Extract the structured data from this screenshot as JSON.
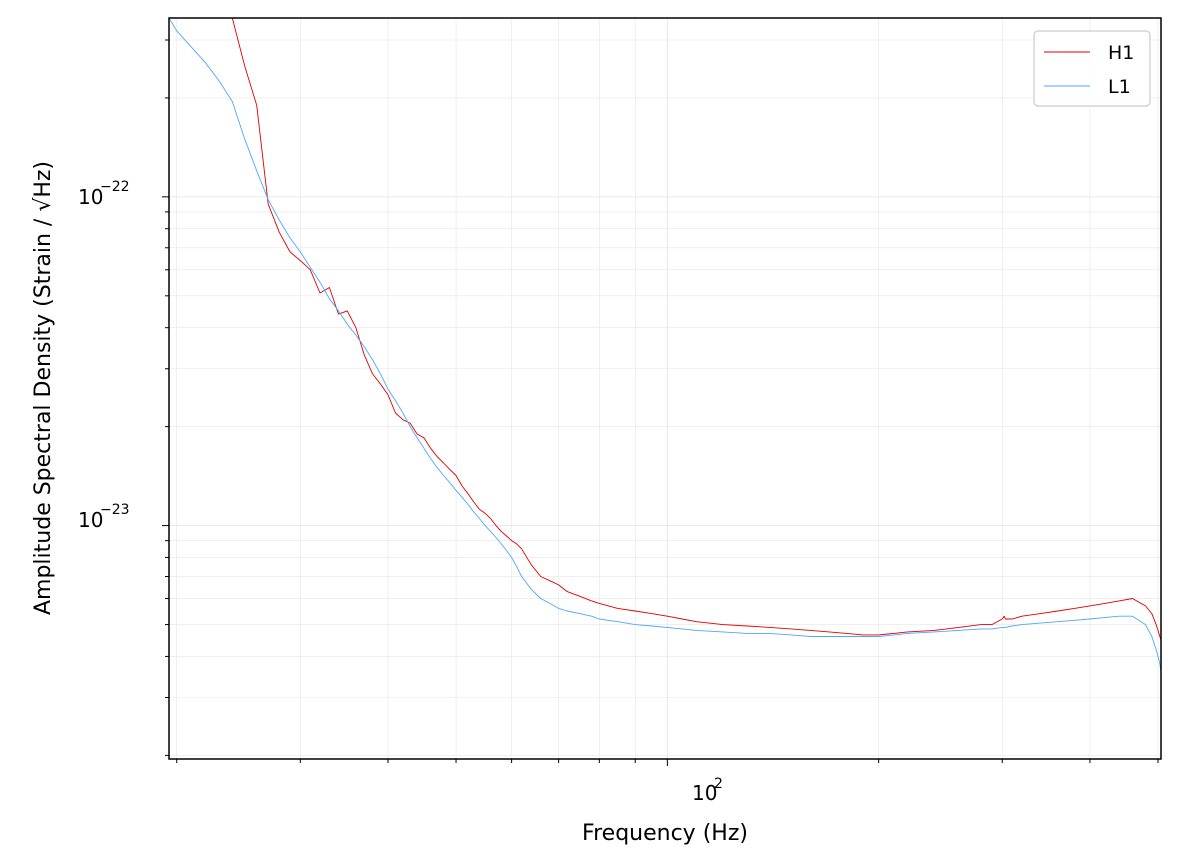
{
  "chart_data": {
    "type": "line",
    "title": "",
    "xlabel": "Frequency (Hz)",
    "ylabel": "Amplitude Spectral Density (Strain / √Hz)",
    "xscale": "log",
    "yscale": "log",
    "xlim": [
      19.5,
      505
    ],
    "ylim": [
      1.95e-24,
      3.5e-22
    ],
    "x_tick_labels": [
      "10^2"
    ],
    "y_tick_labels": [
      "10^-22",
      "10^-23"
    ],
    "grid": true,
    "legend": "upper right",
    "series": [
      {
        "name": "H1",
        "color": "#e00000",
        "x": [
          19.5,
          20,
          21,
          22,
          23,
          24,
          25,
          26,
          27,
          28,
          29,
          30,
          31,
          32,
          33,
          34,
          35,
          36,
          37,
          38,
          39,
          40,
          41,
          42,
          43,
          44,
          45,
          46,
          47,
          48,
          49,
          50,
          51,
          52,
          53,
          54,
          55,
          56,
          57,
          58,
          59,
          60,
          61,
          62,
          64,
          66,
          68,
          70,
          72,
          75,
          78,
          80,
          85,
          90,
          95,
          100,
          105,
          110,
          120,
          130,
          140,
          150,
          160,
          170,
          180,
          190,
          200,
          210,
          220,
          240,
          260,
          280,
          290,
          300,
          302,
          303,
          310,
          320,
          340,
          360,
          380,
          400,
          420,
          440,
          460,
          480,
          490,
          497,
          500,
          503,
          505
        ],
        "values": [
          3.5e-22,
          3.5e-22,
          3.5e-22,
          3.5e-22,
          3.5e-22,
          3.5e-22,
          2.5e-22,
          1.9e-22,
          9.5e-23,
          7.8e-23,
          6.8e-23,
          6.4e-23,
          6e-23,
          5.1e-23,
          5.3e-23,
          4.4e-23,
          4.5e-23,
          4e-23,
          3.3e-23,
          2.9e-23,
          2.7e-23,
          2.5e-23,
          2.2e-23,
          2.1e-23,
          2.05e-23,
          1.9e-23,
          1.85e-23,
          1.72e-23,
          1.62e-23,
          1.55e-23,
          1.48e-23,
          1.42e-23,
          1.32e-23,
          1.25e-23,
          1.18e-23,
          1.12e-23,
          1.09e-23,
          1.05e-23,
          1e-23,
          9.6e-24,
          9.3e-24,
          9e-24,
          8.8e-24,
          8.5e-24,
          7.6e-24,
          7e-24,
          6.8e-24,
          6.6e-24,
          6.3e-24,
          6.1e-24,
          5.9e-24,
          5.8e-24,
          5.6e-24,
          5.5e-24,
          5.4e-24,
          5.3e-24,
          5.2e-24,
          5.1e-24,
          5e-24,
          4.95e-24,
          4.9e-24,
          4.85e-24,
          4.8e-24,
          4.75e-24,
          4.7e-24,
          4.65e-24,
          4.65e-24,
          4.7e-24,
          4.75e-24,
          4.8e-24,
          4.9e-24,
          5e-24,
          5e-24,
          5.2e-24,
          5.3e-24,
          5.2e-24,
          5.2e-24,
          5.3e-24,
          5.4e-24,
          5.5e-24,
          5.6e-24,
          5.7e-24,
          5.8e-24,
          5.9e-24,
          6e-24,
          5.7e-24,
          5.4e-24,
          5e-24,
          4.8e-24,
          4.6e-24,
          4.5e-24
        ]
      },
      {
        "name": "L1",
        "color": "#4da6ff",
        "x": [
          19.5,
          20,
          21,
          22,
          23,
          24,
          25,
          26,
          27,
          28,
          29,
          30,
          31,
          32,
          33,
          34,
          35,
          36,
          37,
          38,
          39,
          40,
          41,
          42,
          43,
          44,
          45,
          46,
          47,
          48,
          49,
          50,
          51,
          52,
          53,
          54,
          55,
          56,
          57,
          58,
          59,
          60,
          61,
          62,
          64,
          66,
          68,
          70,
          72,
          75,
          78,
          80,
          85,
          90,
          95,
          100,
          105,
          110,
          120,
          130,
          140,
          150,
          160,
          170,
          180,
          190,
          200,
          210,
          220,
          240,
          260,
          280,
          290,
          300,
          302,
          303,
          310,
          320,
          340,
          360,
          380,
          400,
          420,
          440,
          460,
          480,
          490,
          497,
          500,
          503,
          505
        ],
        "values": [
          3.5e-22,
          3.2e-22,
          2.85e-22,
          2.55e-22,
          2.25e-22,
          1.95e-22,
          1.5e-22,
          1.2e-22,
          9.8e-23,
          8.5e-23,
          7.5e-23,
          6.8e-23,
          6.1e-23,
          5.5e-23,
          4.9e-23,
          4.5e-23,
          4.1e-23,
          3.8e-23,
          3.5e-23,
          3.2e-23,
          2.9e-23,
          2.6e-23,
          2.4e-23,
          2.2e-23,
          2e-23,
          1.85e-23,
          1.72e-23,
          1.6e-23,
          1.5e-23,
          1.42e-23,
          1.35e-23,
          1.28e-23,
          1.22e-23,
          1.16e-23,
          1.1e-23,
          1.05e-23,
          1e-23,
          9.6e-24,
          9.2e-24,
          8.8e-24,
          8.4e-24,
          8e-24,
          7.5e-24,
          7e-24,
          6.4e-24,
          6e-24,
          5.8e-24,
          5.6e-24,
          5.5e-24,
          5.4e-24,
          5.3e-24,
          5.2e-24,
          5.1e-24,
          5e-24,
          4.95e-24,
          4.9e-24,
          4.85e-24,
          4.8e-24,
          4.75e-24,
          4.7e-24,
          4.7e-24,
          4.65e-24,
          4.6e-24,
          4.6e-24,
          4.6e-24,
          4.6e-24,
          4.6e-24,
          4.65e-24,
          4.7e-24,
          4.75e-24,
          4.8e-24,
          4.85e-24,
          4.85e-24,
          4.9e-24,
          4.9e-24,
          4.9e-24,
          4.95e-24,
          5e-24,
          5.05e-24,
          5.1e-24,
          5.15e-24,
          5.2e-24,
          5.25e-24,
          5.3e-24,
          5.3e-24,
          5e-24,
          4.6e-24,
          4.2e-24,
          4e-24,
          3.8e-24,
          3.6e-24
        ]
      }
    ]
  }
}
